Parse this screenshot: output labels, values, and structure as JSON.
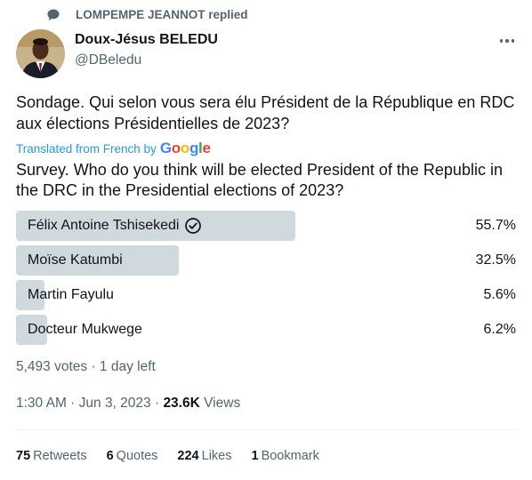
{
  "context": {
    "text": "LOMPEMPE JEANNOT replied",
    "icon": "speech-bubble-icon"
  },
  "author": {
    "name": "Doux-Jésus BELEDU",
    "handle": "@DBeledu"
  },
  "tweet": {
    "original": "Sondage. Qui selon vous sera élu Président de la République en RDC aux élections Présidentielles de 2023?",
    "translated_label": "Translated from French by",
    "translator": "Google",
    "translation": "Survey. Who do you think will be elected President of the Republic in the DRC in the Presidential elections of 2023?"
  },
  "poll": {
    "options": [
      {
        "label": "Félix Antoine Tshisekedi",
        "percent": "55.7%",
        "share": 0.557,
        "selected": true
      },
      {
        "label": "Moïse Katumbi",
        "percent": "32.5%",
        "share": 0.325,
        "selected": false
      },
      {
        "label": "Martin Fayulu",
        "percent": "5.6%",
        "share": 0.056,
        "selected": false
      },
      {
        "label": "Docteur Mukwege",
        "percent": "6.2%",
        "share": 0.062,
        "selected": false
      }
    ],
    "meta": "5,493 votes · 1 day left"
  },
  "timestamp": {
    "time": "1:30 AM · Jun 3, 2023 · ",
    "views_count": "23.6K",
    "views_label": "Views"
  },
  "stats": {
    "retweets": {
      "count": "75",
      "label": "Retweets"
    },
    "quotes": {
      "count": "6",
      "label": "Quotes"
    },
    "likes": {
      "count": "224",
      "label": "Likes"
    },
    "bookmarks": {
      "count": "1",
      "label": "Bookmark"
    }
  },
  "colors": {
    "accent": "#1d9bf0",
    "poll_bar": "#cfd9de",
    "secondary_text": "#536471"
  }
}
